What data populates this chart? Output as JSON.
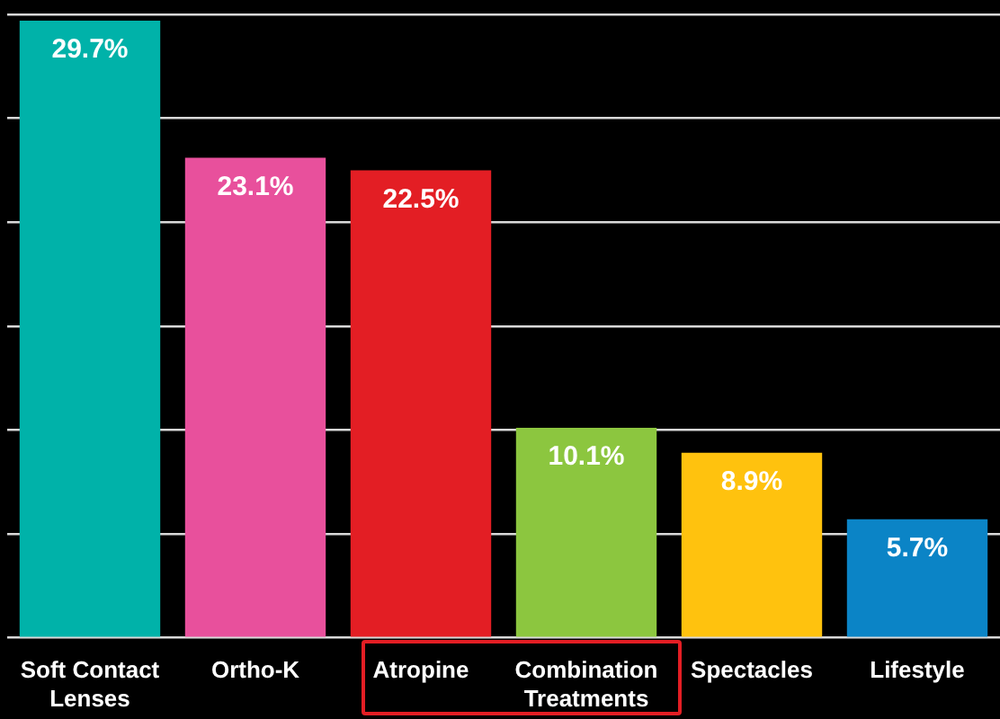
{
  "chart_data": {
    "type": "bar",
    "categories": [
      "Soft Contact Lenses",
      "Ortho-K",
      "Atropine",
      "Combination Treatments",
      "Spectacles",
      "Lifestyle"
    ],
    "values": [
      29.7,
      23.1,
      22.5,
      10.1,
      8.9,
      5.7
    ],
    "colors": [
      "#00b2a9",
      "#e8509c",
      "#e31e24",
      "#8cc63f",
      "#ffc20e",
      "#0b84c6"
    ],
    "value_labels": [
      "29.7%",
      "23.1%",
      "22.5%",
      "10.1%",
      "8.9%",
      "5.7%"
    ],
    "ylim": [
      0,
      30
    ],
    "yticks": [
      {
        "value": 0,
        "label": null
      },
      {
        "value": 5,
        "label": null
      },
      {
        "value": 10,
        "label": null
      },
      {
        "value": 15,
        "label": null
      },
      {
        "value": 20,
        "label": null
      },
      {
        "value": 25,
        "label": null
      },
      {
        "value": 30,
        "label": null
      }
    ],
    "grid": "y",
    "tick_labels": "x",
    "legend": false
  }
}
